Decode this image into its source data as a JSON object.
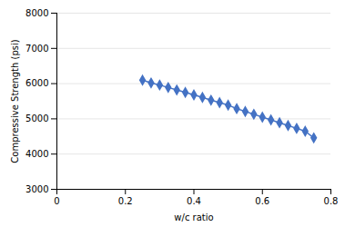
{
  "chart_data": {
    "type": "line",
    "x": [
      0.25,
      0.275,
      0.3,
      0.325,
      0.35,
      0.375,
      0.4,
      0.425,
      0.45,
      0.475,
      0.5,
      0.525,
      0.55,
      0.575,
      0.6,
      0.625,
      0.65,
      0.675,
      0.7,
      0.725,
      0.75
    ],
    "values": [
      6100,
      6020,
      5960,
      5890,
      5820,
      5750,
      5680,
      5610,
      5530,
      5460,
      5390,
      5290,
      5210,
      5130,
      5050,
      4970,
      4890,
      4810,
      4730,
      4650,
      4460
    ],
    "color": "#4472C4",
    "marker": "diamond",
    "xlabel": "w/c ratio",
    "ylabel": "Compressive Strength (psi)",
    "xlim": [
      0,
      0.8
    ],
    "ylim": [
      3000,
      8000
    ],
    "xticks": [
      0,
      0.2,
      0.4,
      0.6,
      0.8
    ],
    "yticks": [
      3000,
      4000,
      5000,
      6000,
      7000,
      8000
    ],
    "grid": "y"
  }
}
